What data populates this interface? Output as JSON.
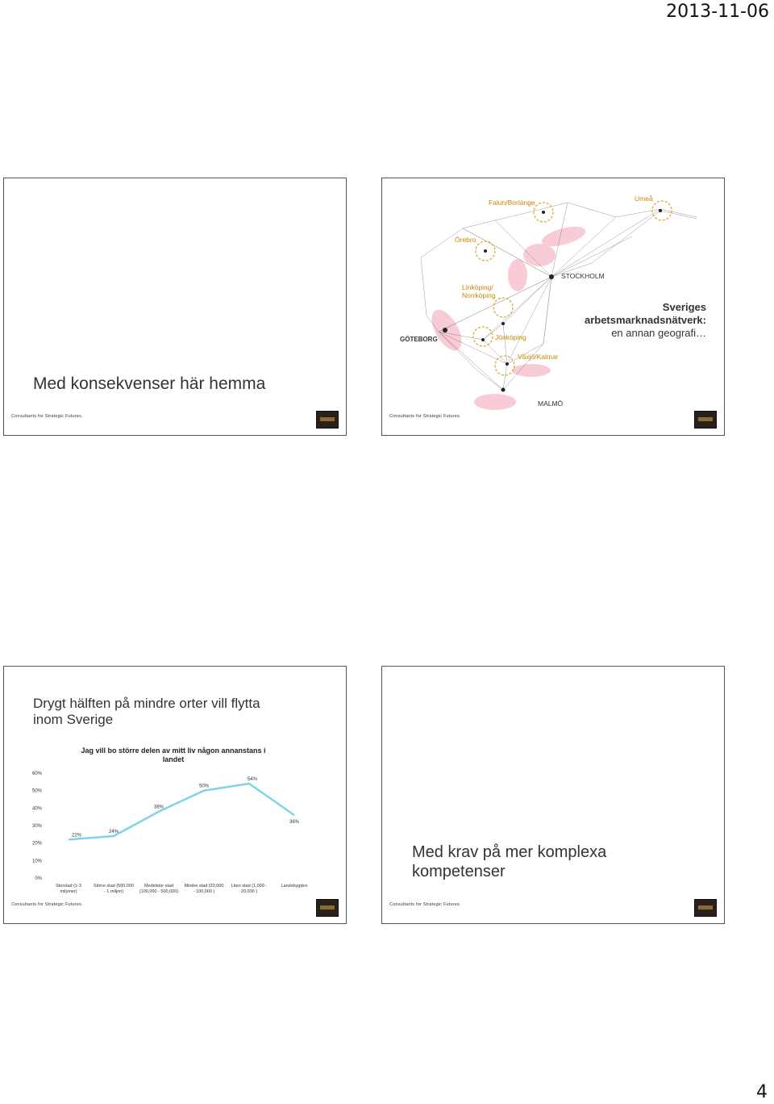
{
  "header": {
    "date": "2013-11-06"
  },
  "page_number": "4",
  "footer": {
    "company": "Consultants for Strategic Futures."
  },
  "slide1": {
    "title": "Med konsekvenser här hemma"
  },
  "slide2": {
    "title_line1": "Sveriges",
    "title_line2": "arbetsmarknadsnätverk:",
    "title_line3": "en annan geografi…",
    "cities": {
      "falun": "Falun/Borlänge",
      "umea": "Umeå",
      "orebro": "Örebro",
      "stockholm": "STOCKHOLM",
      "linkoping1": "Linköping/",
      "linkoping2": "Norrköping",
      "goteborg": "GÖTEBORG",
      "jonkoping": "Jönköping",
      "vaxjo": "Växjö/Kalmar",
      "malmo": "MALMÖ"
    },
    "colors": {
      "highlight": "#f2a4b8",
      "label": "#c58a00",
      "network": "#444444"
    }
  },
  "slide3": {
    "title_line1": "Drygt hälften på mindre orter vill flytta",
    "title_line2": "inom Sverige"
  },
  "slide4": {
    "title_line1": "Med krav på mer komplexa",
    "title_line2": "kompetenser"
  },
  "chart_data": {
    "type": "line",
    "title_line1": "Jag vill bo större delen av mitt liv någon annanstans i",
    "title_line2": "landet",
    "categories": [
      [
        "Storstad (1-3",
        "miljoner)"
      ],
      [
        "Större stad (500,000",
        "- 1 miljon)"
      ],
      [
        "Medelstor stad",
        "(100,000 - 500,000)"
      ],
      [
        "Mindre stad (20,000",
        "- 100,000 )"
      ],
      [
        "Liten stad (1,000 -",
        "20,000 )"
      ],
      [
        "Landsbygden"
      ]
    ],
    "values": [
      22,
      24,
      38,
      50,
      54,
      36
    ],
    "data_labels": [
      "22%",
      "24%",
      "38%",
      "50%",
      "54%",
      "36%"
    ],
    "yticks": [
      "0%",
      "10%",
      "20%",
      "30%",
      "40%",
      "50%",
      "60%"
    ],
    "ylim": [
      0,
      60
    ],
    "grid": false,
    "line_color": "#7fd3e6"
  }
}
